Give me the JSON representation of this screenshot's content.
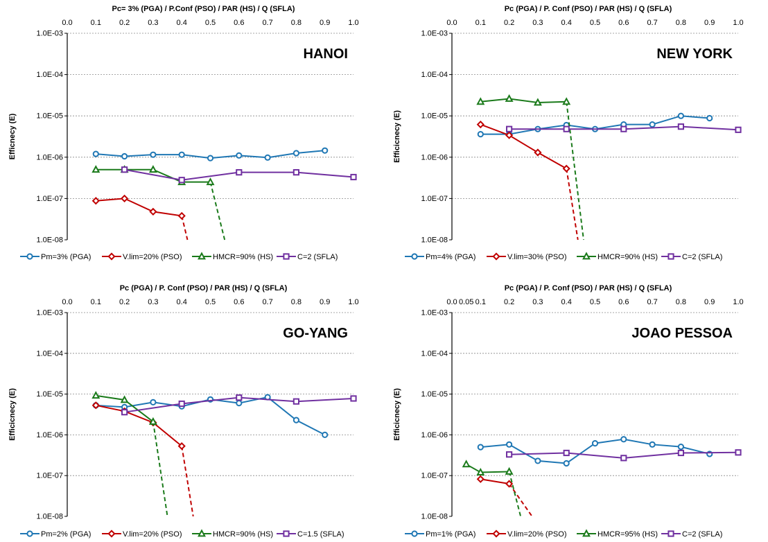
{
  "colors": {
    "pga": "#1f77b4",
    "pso": "#c00000",
    "hs": "#1a7a1a",
    "sfla": "#7030a0",
    "grid": "#888888"
  },
  "chart_data": [
    {
      "type": "line",
      "title": "HANOI",
      "xlabel_top": "Pc= 3% (PGA)  /  P.Conf (PSO) /  PAR (HS)  /  Q (SFLA)",
      "ylabel": "Efficnecy (E)",
      "xlim": [
        0,
        1
      ],
      "ylim": [
        1e-08,
        0.001
      ],
      "yscale": "log",
      "x_ticks": [
        "0.0",
        "0.1",
        "0.2",
        "0.3",
        "0.4",
        "0.5",
        "0.6",
        "0.7",
        "0.8",
        "0.9",
        "1.0"
      ],
      "y_ticks": [
        "1.0E-08",
        "1.0E-07",
        "1.0E-06",
        "1.0E-05",
        "1.0E-04",
        "1.0E-03"
      ],
      "grid": "horizontal dotted",
      "series": [
        {
          "name": "Pm=3% (PGA)",
          "marker": "circle",
          "color_key": "pga",
          "x": [
            0.1,
            0.2,
            0.3,
            0.4,
            0.5,
            0.6,
            0.7,
            0.8,
            0.9
          ],
          "y": [
            1.2e-06,
            1.05e-06,
            1.15e-06,
            1.15e-06,
            9.5e-07,
            1.1e-06,
            9.8e-07,
            1.25e-06,
            1.45e-06
          ]
        },
        {
          "name": "V.lim=20% (PSO)",
          "marker": "diamond",
          "color_key": "pso",
          "x": [
            0.1,
            0.2,
            0.3,
            0.4
          ],
          "y": [
            8.8e-08,
            1e-07,
            4.8e-08,
            3.8e-08
          ],
          "dashed_to": [
            0.42,
            1e-08
          ]
        },
        {
          "name": "HMCR=90% (HS)",
          "marker": "triangle",
          "color_key": "hs",
          "x": [
            0.1,
            0.2,
            0.3,
            0.4,
            0.5
          ],
          "y": [
            5e-07,
            5e-07,
            5e-07,
            2.5e-07,
            2.5e-07
          ],
          "dashed_to": [
            0.55,
            1e-08
          ]
        },
        {
          "name": "C=2 (SFLA)",
          "marker": "square",
          "color_key": "sfla",
          "x": [
            0.2,
            0.4,
            0.6,
            0.8,
            1.0
          ],
          "y": [
            5e-07,
            2.8e-07,
            4.3e-07,
            4.3e-07,
            3.3e-07
          ]
        }
      ]
    },
    {
      "type": "line",
      "title": "NEW YORK",
      "xlabel_top": "Pc (PGA) /  P. Conf (PSO) /  PAR (HS)  /  Q (SFLA)",
      "ylabel": "Efficicnecy (E)",
      "xlim": [
        0,
        1
      ],
      "ylim": [
        1e-08,
        0.001
      ],
      "yscale": "log",
      "x_ticks": [
        "0.0",
        "0.1",
        "0.2",
        "0.3",
        "0.4",
        "0.5",
        "0.6",
        "0.7",
        "0.8",
        "0.9",
        "1.0"
      ],
      "y_ticks": [
        "1.0E-08",
        "1.0E-07",
        "1.0E-06",
        "1.0E-05",
        "1.0E-04",
        "1.0E-03"
      ],
      "grid": "horizontal dotted",
      "series": [
        {
          "name": "Pm=4% (PGA)",
          "marker": "circle",
          "color_key": "pga",
          "x": [
            0.1,
            0.2,
            0.3,
            0.4,
            0.5,
            0.6,
            0.7,
            0.8,
            0.9
          ],
          "y": [
            3.6e-06,
            3.6e-06,
            4.8e-06,
            6e-06,
            4.8e-06,
            6.2e-06,
            6.2e-06,
            1e-05,
            8.8e-06
          ]
        },
        {
          "name": "V.lim=30% (PSO)",
          "marker": "diamond",
          "color_key": "pso",
          "x": [
            0.1,
            0.2,
            0.3,
            0.4
          ],
          "y": [
            6.2e-06,
            3.4e-06,
            1.3e-06,
            5.3e-07
          ],
          "dashed_to": [
            0.44,
            1e-08
          ]
        },
        {
          "name": "HMCR=90% (HS)",
          "marker": "triangle",
          "color_key": "hs",
          "x": [
            0.1,
            0.2,
            0.3,
            0.4
          ],
          "y": [
            2.2e-05,
            2.6e-05,
            2.1e-05,
            2.2e-05
          ],
          "dashed_to": [
            0.46,
            1e-08
          ]
        },
        {
          "name": "C=2 (SFLA)",
          "marker": "square",
          "color_key": "sfla",
          "x": [
            0.2,
            0.4,
            0.6,
            0.8,
            1.0
          ],
          "y": [
            4.8e-06,
            4.8e-06,
            4.8e-06,
            5.5e-06,
            4.6e-06
          ]
        }
      ]
    },
    {
      "type": "line",
      "title": "GO-YANG",
      "xlabel_top": "Pc (PGA) /  P. Conf (PSO) /  PAR (HS)  /  Q (SFLA)",
      "ylabel": "Efficicnecy (E)",
      "xlim": [
        0,
        1
      ],
      "ylim": [
        1e-08,
        0.001
      ],
      "yscale": "log",
      "x_ticks": [
        "0.0",
        "0.1",
        "0.2",
        "0.3",
        "0.4",
        "0.5",
        "0.6",
        "0.7",
        "0.8",
        "0.9",
        "1.0"
      ],
      "y_ticks": [
        "1.0E-08",
        "1.0E-07",
        "1.0E-06",
        "1.0E-05",
        "1.0E-04",
        "1.0E-03"
      ],
      "grid": "horizontal dotted",
      "series": [
        {
          "name": "Pm=2% (PGA)",
          "marker": "circle",
          "color_key": "pga",
          "x": [
            0.1,
            0.2,
            0.3,
            0.4,
            0.5,
            0.6,
            0.7,
            0.8,
            0.9
          ],
          "y": [
            5.3e-06,
            4.8e-06,
            6.3e-06,
            5e-06,
            7.4e-06,
            6e-06,
            8.4e-06,
            2.3e-06,
            1e-06
          ]
        },
        {
          "name": "V.lim=20% (PSO)",
          "marker": "diamond",
          "color_key": "pso",
          "x": [
            0.1,
            0.2,
            0.3,
            0.4
          ],
          "y": [
            5.3e-06,
            3.8e-06,
            2e-06,
            5.3e-07
          ],
          "dashed_to": [
            0.44,
            1e-08
          ]
        },
        {
          "name": "HMCR=90% (HS)",
          "marker": "triangle",
          "color_key": "hs",
          "x": [
            0.1,
            0.2,
            0.3
          ],
          "y": [
            9.2e-06,
            7.2e-06,
            2.1e-06
          ],
          "dashed_to": [
            0.35,
            1e-08
          ]
        },
        {
          "name": "C=1.5 (SFLA)",
          "marker": "square",
          "color_key": "sfla",
          "x": [
            0.2,
            0.4,
            0.6,
            0.8,
            1.0
          ],
          "y": [
            3.6e-06,
            5.8e-06,
            8.2e-06,
            6.6e-06,
            7.8e-06
          ]
        }
      ]
    },
    {
      "type": "line",
      "title": "JOAO PESSOA",
      "xlabel_top": "Pc (PGA) /  P. Conf (PSO) /  PAR (HS)  /  Q (SFLA)",
      "ylabel": "Efficicnecy (E)",
      "xlim": [
        0,
        1
      ],
      "ylim": [
        1e-08,
        0.001
      ],
      "yscale": "log",
      "x_ticks": [
        "0.0",
        "0.05",
        "0.1",
        "0.2",
        "0.3",
        "0.4",
        "0.5",
        "0.6",
        "0.7",
        "0.8",
        "0.9",
        "1.0"
      ],
      "y_ticks": [
        "1.0E-08",
        "1.0E-07",
        "1.0E-06",
        "1.0E-05",
        "1.0E-04",
        "1.0E-03"
      ],
      "grid": "horizontal dotted",
      "series": [
        {
          "name": "Pm=1% (PGA)",
          "marker": "circle",
          "color_key": "pga",
          "x": [
            0.1,
            0.2,
            0.3,
            0.4,
            0.5,
            0.6,
            0.7,
            0.8,
            0.9
          ],
          "y": [
            5e-07,
            5.8e-07,
            2.3e-07,
            2e-07,
            6.2e-07,
            7.8e-07,
            5.8e-07,
            5.1e-07,
            3.4e-07
          ]
        },
        {
          "name": "V.lim=20% (PSO)",
          "marker": "diamond",
          "color_key": "pso",
          "x": [
            0.1,
            0.2
          ],
          "y": [
            8.2e-08,
            6.3e-08
          ],
          "dashed_to": [
            0.28,
            1e-08
          ]
        },
        {
          "name": "HMCR=95% (HS)",
          "marker": "triangle",
          "color_key": "hs",
          "x": [
            0.05,
            0.1,
            0.2
          ],
          "y": [
            1.9e-07,
            1.2e-07,
            1.25e-07
          ],
          "dashed_to": [
            0.24,
            1e-08
          ]
        },
        {
          "name": "C=2 (SFLA)",
          "marker": "square",
          "color_key": "sfla",
          "x": [
            0.2,
            0.4,
            0.6,
            0.8,
            1.0
          ],
          "y": [
            3.3e-07,
            3.6e-07,
            2.7e-07,
            3.6e-07,
            3.7e-07
          ]
        }
      ]
    }
  ]
}
